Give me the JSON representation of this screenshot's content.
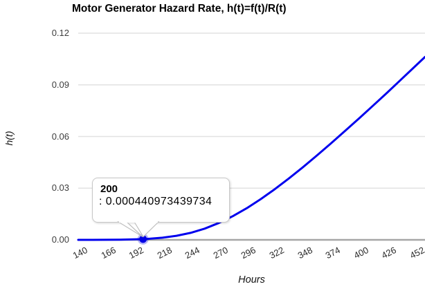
{
  "title": "Motor Generator Hazard Rate, h(t)=f(t)/R(t)",
  "tooltip": {
    "label": "200",
    "value": ": 0.000440973439734"
  },
  "chart_data": {
    "type": "line",
    "title": "Motor Generator Hazard Rate, h(t)=f(t)/R(t)",
    "xlabel": "Hours",
    "ylabel": "h(t)",
    "x_ticks": [
      140,
      166,
      192,
      218,
      244,
      270,
      296,
      322,
      348,
      374,
      400,
      426,
      452
    ],
    "y_ticks": [
      "0.00",
      "0.03",
      "0.06",
      "0.09",
      "0.12"
    ],
    "xlim": [
      140,
      461
    ],
    "ylim": [
      0,
      0.12
    ],
    "grid": true,
    "legend_position": "none",
    "series": [
      {
        "name": "h(t)",
        "color": "#0000ee",
        "x": [
          140,
          153,
          166,
          179,
          192,
          200,
          205,
          218,
          231,
          244,
          257,
          270,
          283,
          296,
          309,
          322,
          335,
          348,
          361,
          374,
          387,
          400,
          413,
          426,
          439,
          452,
          461
        ],
        "y": [
          3.3e-06,
          1.16e-05,
          3.65e-05,
          0.000103,
          0.000261,
          0.000440973439734,
          0.000599,
          0.001245,
          0.002352,
          0.004072,
          0.006516,
          0.009735,
          0.013711,
          0.018383,
          0.023661,
          0.029446,
          0.035648,
          0.042191,
          0.049003,
          0.056034,
          0.063242,
          0.070566,
          0.07797,
          0.08547,
          0.09318,
          0.10089,
          0.1062
        ]
      }
    ],
    "selected_point": {
      "x": 200,
      "y": 0.000440973439734,
      "tooltip_label": "200",
      "tooltip_value": ": 0.000440973439734"
    }
  },
  "colors": {
    "line": "#0000ee",
    "point": "#0000e6",
    "point_halo": "rgba(0,0,230,0.28)",
    "gridline": "#e2e2e2",
    "baseline": "#a6a6a6",
    "tick_text": "#2b2b2b",
    "tooltip_border": "#c8c8c8",
    "tooltip_bg": "#ffffff"
  }
}
